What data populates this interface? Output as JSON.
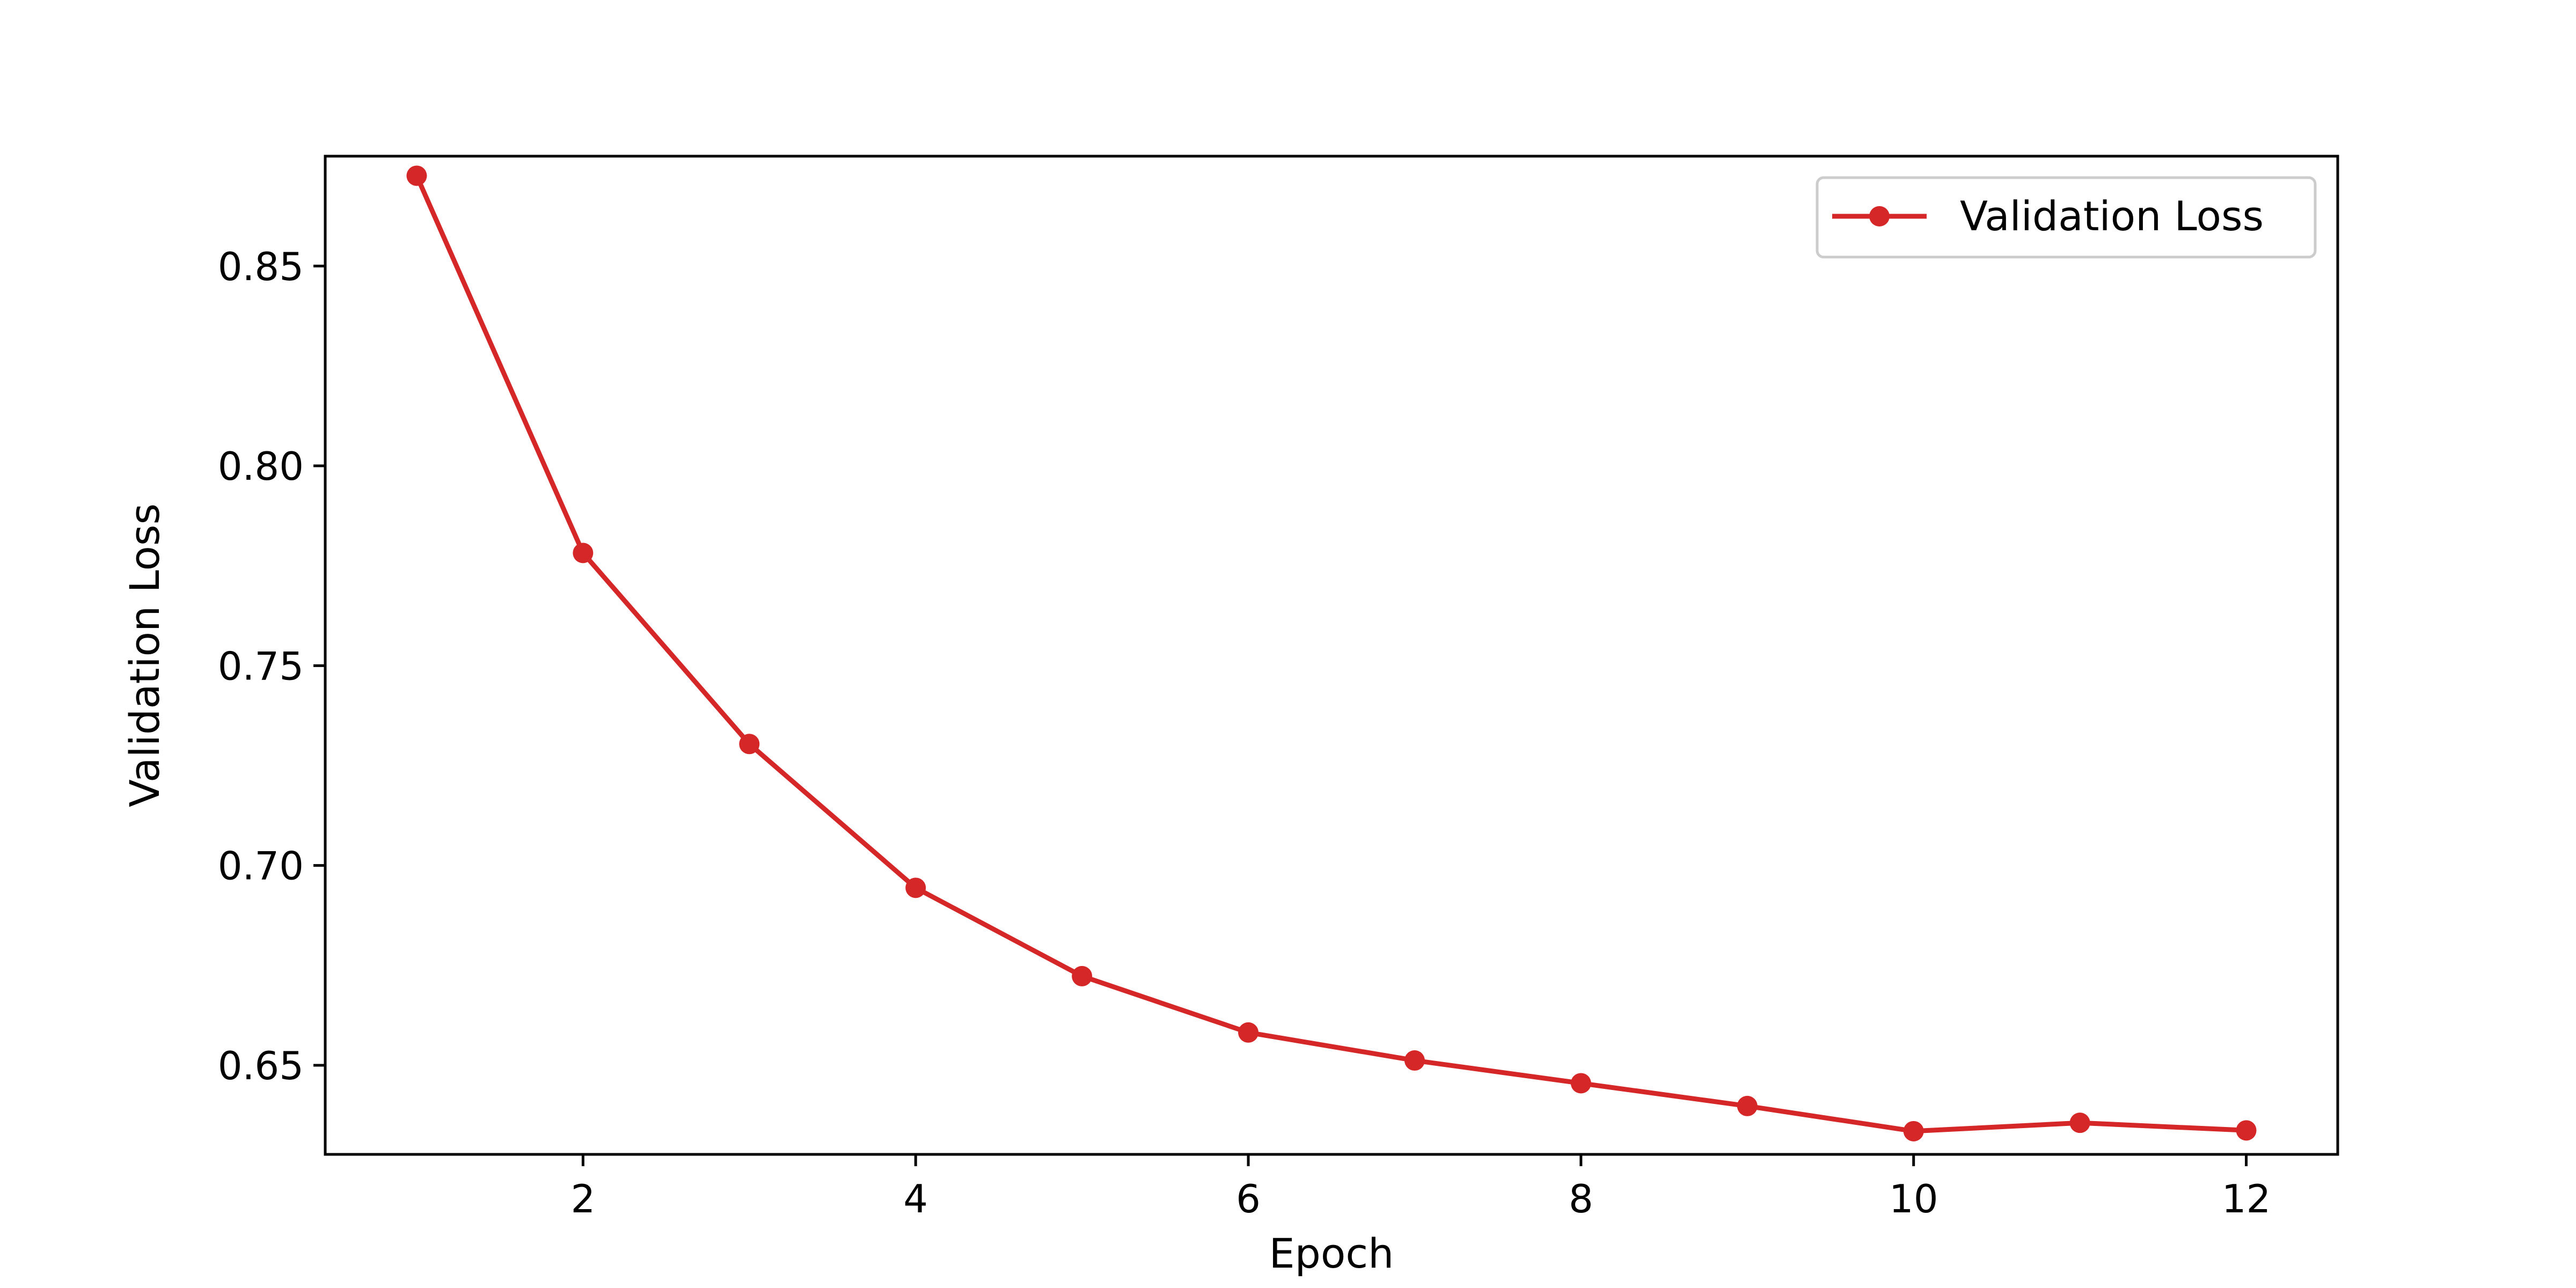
{
  "chart_data": {
    "type": "line",
    "title": "",
    "xlabel": "Epoch",
    "ylabel": "Validation Loss",
    "xlim": [
      0.45,
      12.55
    ],
    "ylim": [
      0.6277,
      0.8775
    ],
    "x_ticks": [
      2,
      4,
      6,
      8,
      10,
      12
    ],
    "x_tick_labels": [
      "2",
      "4",
      "6",
      "8",
      "10",
      "12"
    ],
    "y_ticks": [
      0.65,
      0.7,
      0.75,
      0.8,
      0.85
    ],
    "y_tick_labels": [
      "0.65",
      "0.70",
      "0.75",
      "0.80",
      "0.85"
    ],
    "grid": false,
    "legend_position": "top-right",
    "series": [
      {
        "name": "Validation Loss",
        "color": "#d62728",
        "marker": "circle",
        "x": [
          1,
          2,
          3,
          4,
          5,
          6,
          7,
          8,
          9,
          10,
          11,
          12
        ],
        "y": [
          0.8726,
          0.7782,
          0.7304,
          0.6944,
          0.6723,
          0.6582,
          0.6512,
          0.6455,
          0.6398,
          0.6335,
          0.6356,
          0.6337
        ]
      }
    ]
  }
}
